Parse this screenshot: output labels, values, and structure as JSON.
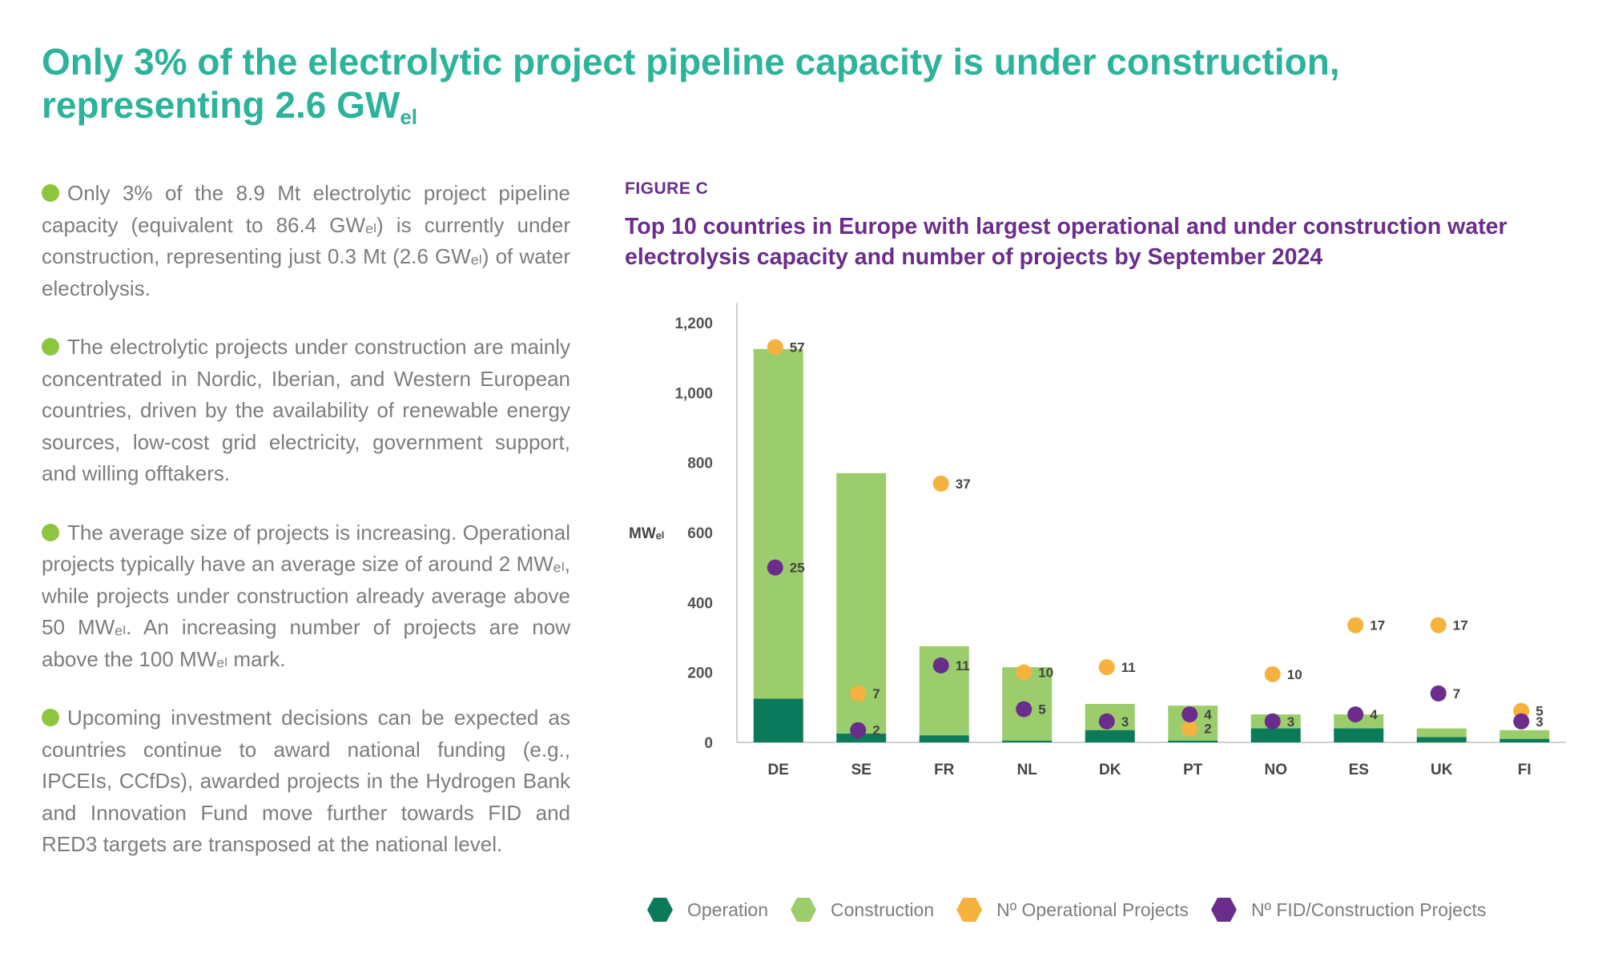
{
  "headline": {
    "text": "Only 3% of the electrolytic project pipeline capacity is under construction, representing 2.6 GW",
    "sub": "el"
  },
  "bullets": [
    "Only 3% of the 8.9 Mt electrolytic project pipeline capacity (equivalent to 86.4 GWₑₗ) is currently under construction, representing just 0.3 Mt (2.6 GWₑₗ) of water electrolysis.",
    "The electrolytic projects under construction are mainly concentrated in Nordic, Iberian, and Western European countries, driven by the availability of renewable energy sources, low-cost grid electricity, government support, and willing offtakers.",
    "The average size of projects is increasing. Operational projects typically have an average size of around 2 MWₑₗ, while projects under construction already average above 50 MWₑₗ. An increasing number of projects are now above the 100 MWₑₗ mark.",
    "Upcoming investment decisions can be expected as countries continue to award national funding (e.g., IPCEIs, CCfDs), awarded projects in the Hydrogen Bank and Innovation Fund move further towards FID and RED3 targets are transposed at the national level."
  ],
  "figure": {
    "label": "FIGURE C",
    "title": "Top 10 countries in Europe with largest operational and under construction water electrolysis capacity and number of projects by September 2024"
  },
  "colors": {
    "operation": "#0b7a5a",
    "construction": "#9ccd6c",
    "operational_projects": "#f5b23e",
    "fid_projects": "#6b2d8b",
    "bullet_dot": "#8cc63f",
    "headline": "#2db39a",
    "figure_title": "#6b2d8b"
  },
  "chart_data": {
    "type": "bar",
    "stacked": true,
    "categories": [
      "DE",
      "SE",
      "FR",
      "NL",
      "DK",
      "PT",
      "NO",
      "ES",
      "UK",
      "FI"
    ],
    "ylabel": "MWₑₗ",
    "ylim": [
      0,
      1200
    ],
    "yticks": [
      0,
      200,
      400,
      600,
      800,
      "1,000",
      "1,200"
    ],
    "series": [
      {
        "name": "Operation",
        "values": [
          125,
          25,
          20,
          5,
          35,
          5,
          40,
          40,
          15,
          10
        ]
      },
      {
        "name": "Construction",
        "values": [
          1000,
          745,
          255,
          210,
          75,
          100,
          40,
          40,
          25,
          25
        ]
      }
    ],
    "markers": [
      {
        "name": "Nº Operational Projects",
        "values": [
          57,
          7,
          37,
          10,
          11,
          2,
          10,
          17,
          17,
          5
        ],
        "y_mw": [
          1130,
          140,
          740,
          200,
          215,
          40,
          195,
          335,
          335,
          90
        ]
      },
      {
        "name": "Nº FID/Construction Projects",
        "values": [
          25,
          2,
          11,
          5,
          3,
          4,
          3,
          4,
          7,
          3
        ],
        "y_mw": [
          500,
          35,
          220,
          95,
          60,
          80,
          60,
          80,
          140,
          60
        ]
      }
    ],
    "legend_position": "bottom"
  }
}
